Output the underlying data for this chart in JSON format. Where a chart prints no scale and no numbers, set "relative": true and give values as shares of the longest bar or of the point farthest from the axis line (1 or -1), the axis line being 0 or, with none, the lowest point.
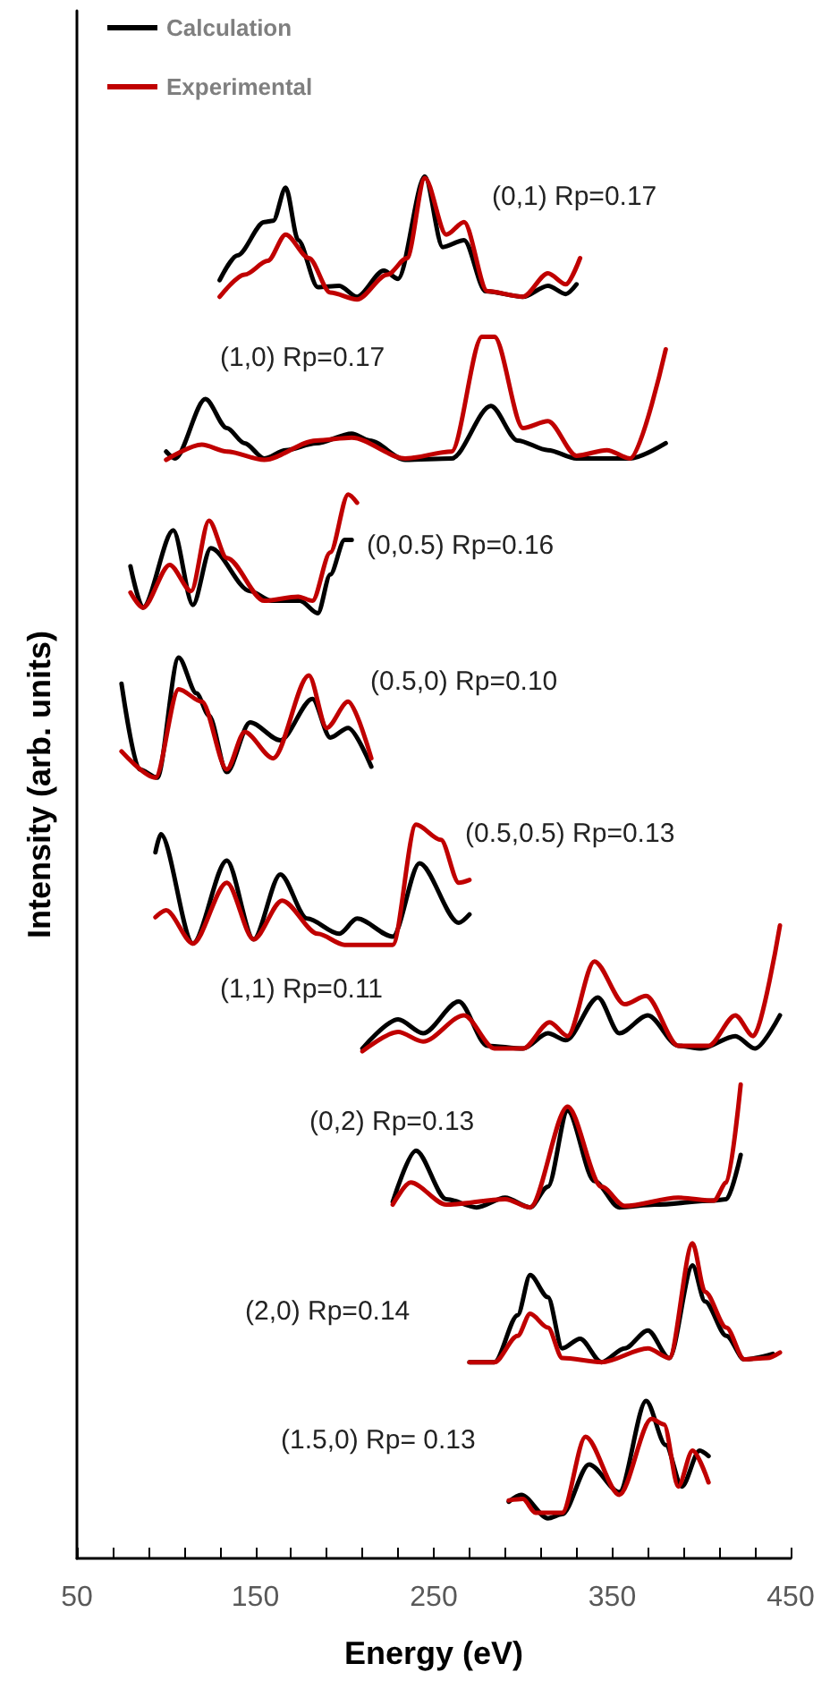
{
  "chart_data": {
    "type": "line",
    "xlabel": "Energy (eV)",
    "ylabel": "Intensity (arb. units)",
    "relative": true,
    "xlim": [
      50,
      450
    ],
    "xticks": [
      50,
      {
        "value": 70,
        "label": null
      },
      {
        "value": 90,
        "label": null
      },
      {
        "value": 110,
        "label": null
      },
      {
        "value": 130,
        "label": null
      },
      150,
      {
        "value": 170,
        "label": null
      },
      {
        "value": 190,
        "label": null
      },
      {
        "value": 210,
        "label": null
      },
      {
        "value": 230,
        "label": null
      },
      250,
      {
        "value": 270,
        "label": null
      },
      {
        "value": 290,
        "label": null
      },
      {
        "value": 310,
        "label": null
      },
      {
        "value": 330,
        "label": null
      },
      350,
      {
        "value": 370,
        "label": null
      },
      {
        "value": 390,
        "label": null
      },
      {
        "value": 410,
        "label": null
      },
      {
        "value": 430,
        "label": null
      },
      450
    ],
    "tick_labels": "x",
    "grid": false,
    "legend": "top left",
    "marker": "none",
    "line_style": "solid",
    "series": [
      {
        "name": "Calculation",
        "color": "#000000",
        "x": [
          130,
          140,
          155,
          160,
          167,
          174,
          185,
          197,
          207,
          222,
          230,
          245,
          255,
          267,
          279,
          300,
          314,
          324,
          330
        ],
        "values": [
          0.925,
          0.943,
          0.967,
          0.968,
          0.992,
          0.954,
          0.92,
          0.921,
          0.913,
          0.932,
          0.926,
          1.0,
          0.949,
          0.954,
          0.917,
          0.913,
          0.921,
          0.915,
          0.922
        ]
      },
      {
        "name": "Experimental",
        "color": "#c00000",
        "x": [
          130,
          144,
          157,
          167,
          180,
          192,
          207,
          224,
          235,
          245,
          257,
          267,
          280,
          300,
          314,
          324,
          332
        ],
        "values": [
          0.913,
          0.929,
          0.939,
          0.958,
          0.941,
          0.916,
          0.911,
          0.929,
          0.941,
          0.999,
          0.958,
          0.967,
          0.917,
          0.913,
          0.93,
          0.922,
          0.941
        ]
      },
      {
        "color": "#000000",
        "x": [
          100,
          105,
          122,
          134,
          144,
          155,
          167,
          184,
          204,
          214,
          234,
          260,
          282,
          297,
          314,
          330,
          360,
          380
        ],
        "values": [
          0.801,
          0.796,
          0.839,
          0.818,
          0.807,
          0.796,
          0.802,
          0.807,
          0.814,
          0.809,
          0.795,
          0.796,
          0.834,
          0.809,
          0.802,
          0.796,
          0.796,
          0.807
        ]
      },
      {
        "color": "#c00000",
        "x": [
          100,
          120,
          134,
          155,
          184,
          204,
          234,
          260,
          277,
          284,
          300,
          314,
          330,
          347,
          360,
          380
        ],
        "values": [
          0.795,
          0.806,
          0.801,
          0.795,
          0.809,
          0.811,
          0.796,
          0.801,
          0.884,
          0.884,
          0.818,
          0.823,
          0.798,
          0.802,
          0.796,
          0.875
        ]
      },
      {
        "color": "#000000",
        "x": [
          80,
          87,
          104,
          115,
          125,
          147,
          159,
          175,
          185,
          192,
          200,
          204
        ],
        "values": [
          0.718,
          0.688,
          0.744,
          0.69,
          0.731,
          0.7,
          0.693,
          0.693,
          0.684,
          0.712,
          0.737,
          0.737
        ]
      },
      {
        "color": "#c00000",
        "x": [
          80,
          87,
          102,
          114,
          124,
          134,
          155,
          174,
          182,
          192,
          202,
          207
        ],
        "values": [
          0.699,
          0.688,
          0.719,
          0.7,
          0.751,
          0.724,
          0.693,
          0.696,
          0.693,
          0.728,
          0.77,
          0.764
        ]
      },
      {
        "color": "#000000",
        "x": [
          75,
          85,
          95,
          107,
          117,
          124,
          134,
          147,
          164,
          182,
          192,
          202,
          215
        ],
        "values": [
          0.633,
          0.571,
          0.565,
          0.652,
          0.626,
          0.61,
          0.569,
          0.605,
          0.592,
          0.622,
          0.594,
          0.601,
          0.573
        ]
      },
      {
        "color": "#c00000",
        "x": [
          75,
          94,
          107,
          120,
          134,
          144,
          160,
          180,
          190,
          202,
          215
        ],
        "values": [
          0.584,
          0.565,
          0.629,
          0.62,
          0.571,
          0.598,
          0.579,
          0.639,
          0.601,
          0.62,
          0.579
        ]
      },
      {
        "color": "#000000",
        "x": [
          94,
          97,
          115,
          134,
          149,
          164,
          179,
          197,
          207,
          227,
          242,
          264,
          270
        ],
        "values": [
          0.511,
          0.524,
          0.445,
          0.505,
          0.448,
          0.495,
          0.463,
          0.452,
          0.463,
          0.45,
          0.503,
          0.46,
          0.466
        ]
      },
      {
        "color": "#c00000",
        "x": [
          94,
          100,
          115,
          134,
          149,
          165,
          185,
          200,
          227,
          240,
          254,
          264,
          270
        ],
        "values": [
          0.464,
          0.469,
          0.445,
          0.489,
          0.448,
          0.476,
          0.452,
          0.444,
          0.444,
          0.531,
          0.52,
          0.489,
          0.491
        ]
      },
      {
        "color": "#000000",
        "x": [
          210,
          230,
          244,
          264,
          280,
          300,
          314,
          324,
          342,
          354,
          370,
          387,
          400,
          419,
          430,
          444
        ],
        "values": [
          0.369,
          0.39,
          0.38,
          0.403,
          0.371,
          0.369,
          0.38,
          0.375,
          0.406,
          0.38,
          0.393,
          0.371,
          0.369,
          0.378,
          0.369,
          0.393
        ]
      },
      {
        "color": "#c00000",
        "x": [
          210,
          230,
          244,
          267,
          284,
          300,
          315,
          325,
          340,
          357,
          369,
          387,
          404,
          419,
          429,
          444
        ],
        "values": [
          0.367,
          0.381,
          0.374,
          0.393,
          0.369,
          0.369,
          0.388,
          0.378,
          0.432,
          0.401,
          0.407,
          0.371,
          0.371,
          0.393,
          0.378,
          0.458
        ]
      },
      {
        "color": "#000000",
        "x": [
          227,
          240,
          257,
          274,
          290,
          304,
          314,
          325,
          340,
          354,
          374,
          407,
          414,
          422
        ],
        "values": [
          0.258,
          0.295,
          0.26,
          0.254,
          0.261,
          0.254,
          0.269,
          0.324,
          0.273,
          0.254,
          0.256,
          0.259,
          0.26,
          0.292
        ]
      },
      {
        "color": "#c00000",
        "x": [
          227,
          237,
          257,
          290,
          304,
          325,
          344,
          357,
          387,
          407,
          414,
          422
        ],
        "values": [
          0.256,
          0.272,
          0.256,
          0.26,
          0.254,
          0.327,
          0.269,
          0.255,
          0.261,
          0.259,
          0.272,
          0.343
        ]
      },
      {
        "color": "#000000",
        "x": [
          270,
          284,
          297,
          304,
          314,
          322,
          332,
          344,
          357,
          370,
          382,
          395,
          402,
          414,
          424,
          440
        ],
        "values": [
          0.142,
          0.142,
          0.176,
          0.205,
          0.189,
          0.152,
          0.159,
          0.142,
          0.152,
          0.165,
          0.145,
          0.212,
          0.186,
          0.161,
          0.144,
          0.148
        ]
      },
      {
        "color": "#c00000",
        "x": [
          270,
          284,
          297,
          304,
          314,
          322,
          344,
          370,
          382,
          395,
          402,
          414,
          424,
          437,
          444
        ],
        "values": [
          0.142,
          0.142,
          0.161,
          0.177,
          0.167,
          0.145,
          0.142,
          0.152,
          0.145,
          0.228,
          0.193,
          0.167,
          0.144,
          0.145,
          0.149
        ]
      },
      {
        "color": "#000000",
        "x": [
          292,
          299,
          314,
          322,
          337,
          354,
          369,
          380,
          389,
          399,
          404
        ],
        "values": [
          0.041,
          0.046,
          0.029,
          0.032,
          0.068,
          0.048,
          0.114,
          0.082,
          0.052,
          0.078,
          0.074
        ]
      },
      {
        "color": "#c00000",
        "x": [
          292,
          300,
          307,
          322,
          335,
          354,
          372,
          379,
          387,
          395,
          404
        ],
        "values": [
          0.042,
          0.043,
          0.033,
          0.033,
          0.088,
          0.046,
          0.101,
          0.097,
          0.052,
          0.078,
          0.055
        ]
      }
    ],
    "annotations": [
      "(0,1) Rp=0.17",
      "(1,0) Rp=0.17",
      "(0,0.5) Rp=0.16",
      "(0.5,0) Rp=0.10",
      "(0.5,0.5) Rp=0.13",
      "(1,1) Rp=0.11",
      "(0,2) Rp=0.13",
      "(2,0) Rp=0.14",
      "(1.5,0) Rp= 0.13"
    ]
  }
}
